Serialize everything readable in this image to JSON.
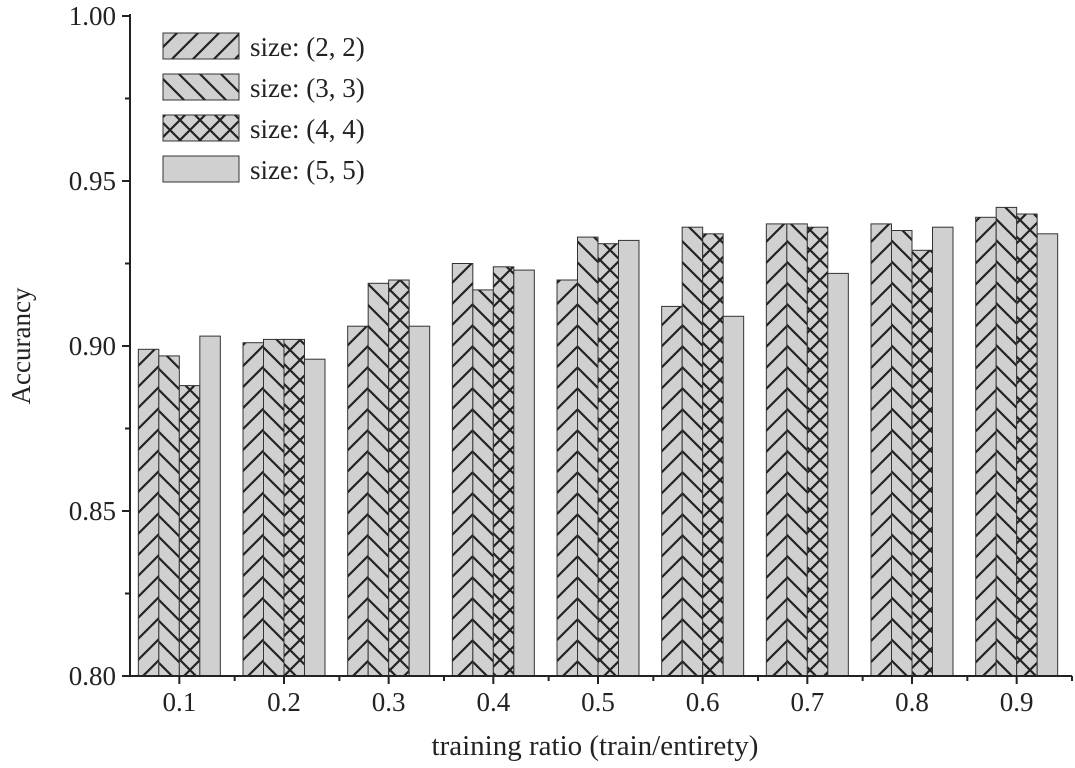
{
  "chart_data": {
    "type": "bar",
    "title": "",
    "xlabel": "training ratio (train/entirety)",
    "ylabel": "Accurancy",
    "ylim": [
      0.8,
      1.0
    ],
    "yticks": [
      "0.80",
      "0.85",
      "0.90",
      "0.95",
      "1.00"
    ],
    "ytick_values": [
      0.8,
      0.85,
      0.9,
      0.95,
      1.0
    ],
    "categories": [
      "0.1",
      "0.2",
      "0.3",
      "0.4",
      "0.5",
      "0.6",
      "0.7",
      "0.8",
      "0.9"
    ],
    "legend_position": "top-left",
    "series": [
      {
        "name": "size: (2, 2)",
        "pattern": "forward-diagonal",
        "values": [
          0.899,
          0.901,
          0.906,
          0.925,
          0.92,
          0.912,
          0.937,
          0.937,
          0.939
        ]
      },
      {
        "name": "size: (3, 3)",
        "pattern": "back-diagonal",
        "values": [
          0.897,
          0.902,
          0.919,
          0.917,
          0.933,
          0.936,
          0.937,
          0.935,
          0.942
        ]
      },
      {
        "name": "size: (4, 4)",
        "pattern": "crosshatch",
        "values": [
          0.888,
          0.902,
          0.92,
          0.924,
          0.931,
          0.934,
          0.936,
          0.929,
          0.94
        ]
      },
      {
        "name": "size: (5, 5)",
        "pattern": "solid",
        "values": [
          0.903,
          0.896,
          0.906,
          0.923,
          0.932,
          0.909,
          0.922,
          0.936,
          0.934
        ]
      }
    ],
    "colors": {
      "bar_fill": "#d0d0d0",
      "hatch": "#222222",
      "axis": "#222222"
    }
  }
}
